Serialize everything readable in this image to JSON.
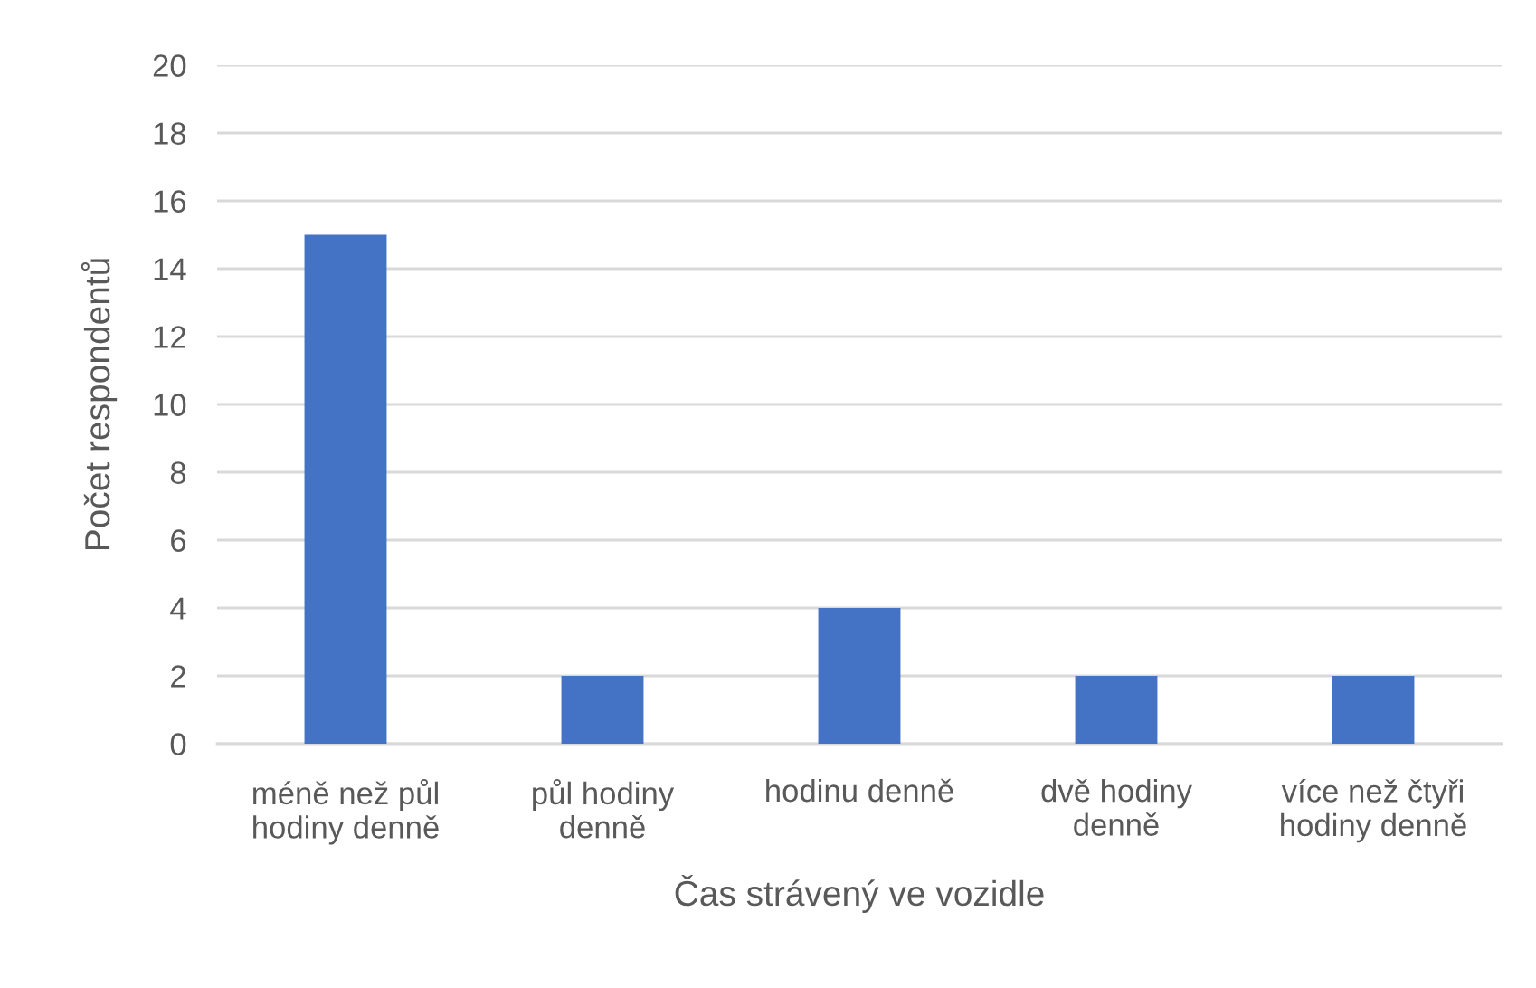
{
  "chart_data": {
    "type": "bar",
    "categories": [
      "méně než půl hodiny denně",
      "půl hodiny denně",
      "hodinu denně",
      "dvě hodiny denně",
      "více než čtyři hodiny denně"
    ],
    "values": [
      15,
      2,
      4,
      2,
      2
    ],
    "color": "#4472c4",
    "xlabel": "Čas strávený ve vozidle",
    "ylabel": "Počet respondentů",
    "ylim": [
      0,
      20
    ],
    "yticks": [
      0,
      2,
      4,
      6,
      8,
      10,
      12,
      14,
      16,
      18,
      20
    ],
    "grid": "y"
  }
}
